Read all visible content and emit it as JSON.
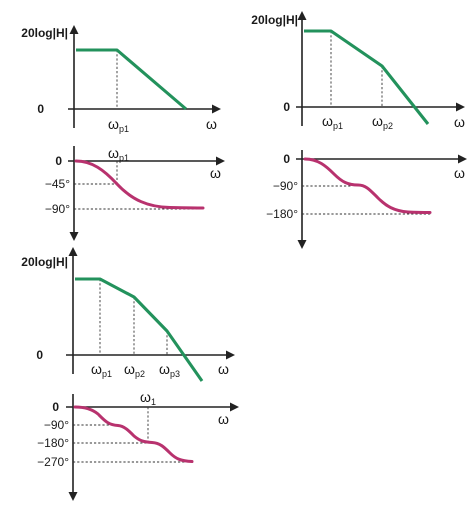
{
  "colors": {
    "magnitude_curve": "#23925c",
    "phase_curve": "#b8326e",
    "axes": "#222222"
  },
  "labels": {
    "magnitude_axis": "20log|H|",
    "frequency_axis": "ω",
    "zero": "0",
    "pole_symbol": "ω",
    "pole_1_sub": "p1",
    "pole_2_sub": "p2",
    "pole_3_sub": "p3",
    "unity_gain_sub": "1"
  },
  "phase_ticks": {
    "deg_45": "−45°",
    "deg_90": "−90°",
    "deg_180": "−180°",
    "deg_270": "−270°"
  },
  "panels": [
    {
      "poles": 1,
      "shows": [
        "magnitude",
        "phase"
      ]
    },
    {
      "poles": 2,
      "shows": [
        "magnitude",
        "phase"
      ]
    },
    {
      "poles": 3,
      "shows": [
        "magnitude",
        "phase"
      ]
    }
  ]
}
